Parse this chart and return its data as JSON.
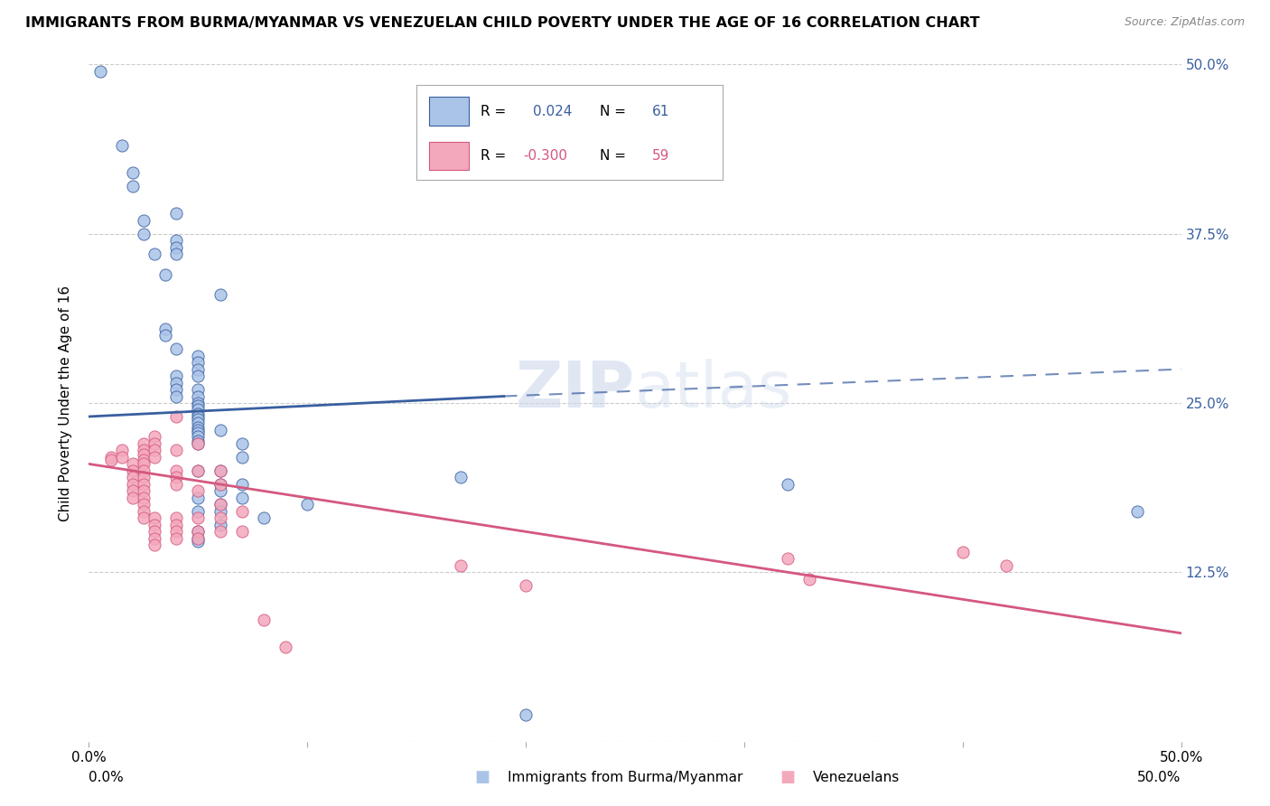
{
  "title": "IMMIGRANTS FROM BURMA/MYANMAR VS VENEZUELAN CHILD POVERTY UNDER THE AGE OF 16 CORRELATION CHART",
  "source": "Source: ZipAtlas.com",
  "ylabel": "Child Poverty Under the Age of 16",
  "blue_color": "#aac4e8",
  "pink_color": "#f4a8bc",
  "blue_line_color": "#3a5fa0",
  "pink_line_color": "#d45880",
  "watermark_color": "#ccd8ec",
  "background_color": "#ffffff",
  "grid_color": "#cccccc",
  "blue_scatter": [
    [
      0.5,
      49.5
    ],
    [
      1.5,
      44.0
    ],
    [
      2.0,
      42.0
    ],
    [
      2.0,
      41.0
    ],
    [
      2.5,
      38.5
    ],
    [
      2.5,
      37.5
    ],
    [
      3.0,
      36.0
    ],
    [
      3.5,
      34.5
    ],
    [
      3.5,
      30.5
    ],
    [
      3.5,
      30.0
    ],
    [
      4.0,
      39.0
    ],
    [
      4.0,
      37.0
    ],
    [
      4.0,
      36.5
    ],
    [
      4.0,
      36.0
    ],
    [
      4.0,
      29.0
    ],
    [
      4.0,
      27.0
    ],
    [
      4.0,
      26.5
    ],
    [
      4.0,
      26.0
    ],
    [
      4.0,
      25.5
    ],
    [
      5.0,
      28.5
    ],
    [
      5.0,
      28.0
    ],
    [
      5.0,
      27.5
    ],
    [
      5.0,
      27.0
    ],
    [
      5.0,
      26.0
    ],
    [
      5.0,
      25.5
    ],
    [
      5.0,
      25.0
    ],
    [
      5.0,
      24.8
    ],
    [
      5.0,
      24.5
    ],
    [
      5.0,
      24.2
    ],
    [
      5.0,
      24.0
    ],
    [
      5.0,
      23.8
    ],
    [
      5.0,
      23.5
    ],
    [
      5.0,
      23.2
    ],
    [
      5.0,
      23.0
    ],
    [
      5.0,
      22.8
    ],
    [
      5.0,
      22.5
    ],
    [
      5.0,
      22.2
    ],
    [
      5.0,
      22.0
    ],
    [
      5.0,
      20.0
    ],
    [
      5.0,
      18.0
    ],
    [
      5.0,
      17.0
    ],
    [
      5.0,
      15.5
    ],
    [
      5.0,
      15.0
    ],
    [
      5.0,
      14.8
    ],
    [
      6.0,
      33.0
    ],
    [
      6.0,
      23.0
    ],
    [
      6.0,
      20.0
    ],
    [
      6.0,
      19.0
    ],
    [
      6.0,
      18.5
    ],
    [
      6.0,
      17.5
    ],
    [
      6.0,
      17.0
    ],
    [
      6.0,
      16.0
    ],
    [
      7.0,
      22.0
    ],
    [
      7.0,
      21.0
    ],
    [
      7.0,
      19.0
    ],
    [
      7.0,
      18.0
    ],
    [
      8.0,
      16.5
    ],
    [
      10.0,
      17.5
    ],
    [
      17.0,
      19.5
    ],
    [
      20.0,
      2.0
    ],
    [
      32.0,
      19.0
    ],
    [
      48.0,
      17.0
    ]
  ],
  "pink_scatter": [
    [
      1.0,
      21.0
    ],
    [
      1.0,
      20.8
    ],
    [
      1.5,
      21.5
    ],
    [
      1.5,
      21.0
    ],
    [
      2.0,
      20.5
    ],
    [
      2.0,
      20.0
    ],
    [
      2.0,
      19.5
    ],
    [
      2.0,
      19.0
    ],
    [
      2.0,
      18.5
    ],
    [
      2.0,
      18.0
    ],
    [
      2.5,
      22.0
    ],
    [
      2.5,
      21.5
    ],
    [
      2.5,
      21.2
    ],
    [
      2.5,
      20.8
    ],
    [
      2.5,
      20.5
    ],
    [
      2.5,
      20.0
    ],
    [
      2.5,
      19.5
    ],
    [
      2.5,
      19.0
    ],
    [
      2.5,
      18.5
    ],
    [
      2.5,
      18.0
    ],
    [
      2.5,
      17.5
    ],
    [
      2.5,
      17.0
    ],
    [
      2.5,
      16.5
    ],
    [
      3.0,
      22.5
    ],
    [
      3.0,
      22.0
    ],
    [
      3.0,
      21.5
    ],
    [
      3.0,
      21.0
    ],
    [
      3.0,
      16.5
    ],
    [
      3.0,
      16.0
    ],
    [
      3.0,
      15.5
    ],
    [
      3.0,
      15.0
    ],
    [
      3.0,
      14.5
    ],
    [
      4.0,
      24.0
    ],
    [
      4.0,
      21.5
    ],
    [
      4.0,
      20.0
    ],
    [
      4.0,
      19.5
    ],
    [
      4.0,
      19.0
    ],
    [
      4.0,
      16.5
    ],
    [
      4.0,
      16.0
    ],
    [
      4.0,
      15.5
    ],
    [
      4.0,
      15.0
    ],
    [
      5.0,
      22.0
    ],
    [
      5.0,
      20.0
    ],
    [
      5.0,
      18.5
    ],
    [
      5.0,
      16.5
    ],
    [
      5.0,
      15.5
    ],
    [
      5.0,
      15.0
    ],
    [
      6.0,
      20.0
    ],
    [
      6.0,
      19.0
    ],
    [
      6.0,
      17.5
    ],
    [
      6.0,
      16.5
    ],
    [
      6.0,
      15.5
    ],
    [
      7.0,
      17.0
    ],
    [
      7.0,
      15.5
    ],
    [
      8.0,
      9.0
    ],
    [
      9.0,
      7.0
    ],
    [
      17.0,
      13.0
    ],
    [
      20.0,
      11.5
    ],
    [
      32.0,
      13.5
    ],
    [
      33.0,
      12.0
    ],
    [
      40.0,
      14.0
    ],
    [
      42.0,
      13.0
    ]
  ],
  "blue_line": [
    [
      0.0,
      24.0
    ],
    [
      19.0,
      25.5
    ]
  ],
  "blue_line_dashed": [
    [
      19.0,
      25.5
    ],
    [
      50.0,
      27.5
    ]
  ],
  "pink_line": [
    [
      0.0,
      20.5
    ],
    [
      50.0,
      8.0
    ]
  ],
  "xlim": [
    0.0,
    50.0
  ],
  "ylim": [
    0.0,
    50.0
  ],
  "xticks": [
    0.0,
    10.0,
    20.0,
    30.0,
    40.0,
    50.0
  ],
  "yticks_right": [
    12.5,
    25.0,
    37.5,
    50.0
  ]
}
